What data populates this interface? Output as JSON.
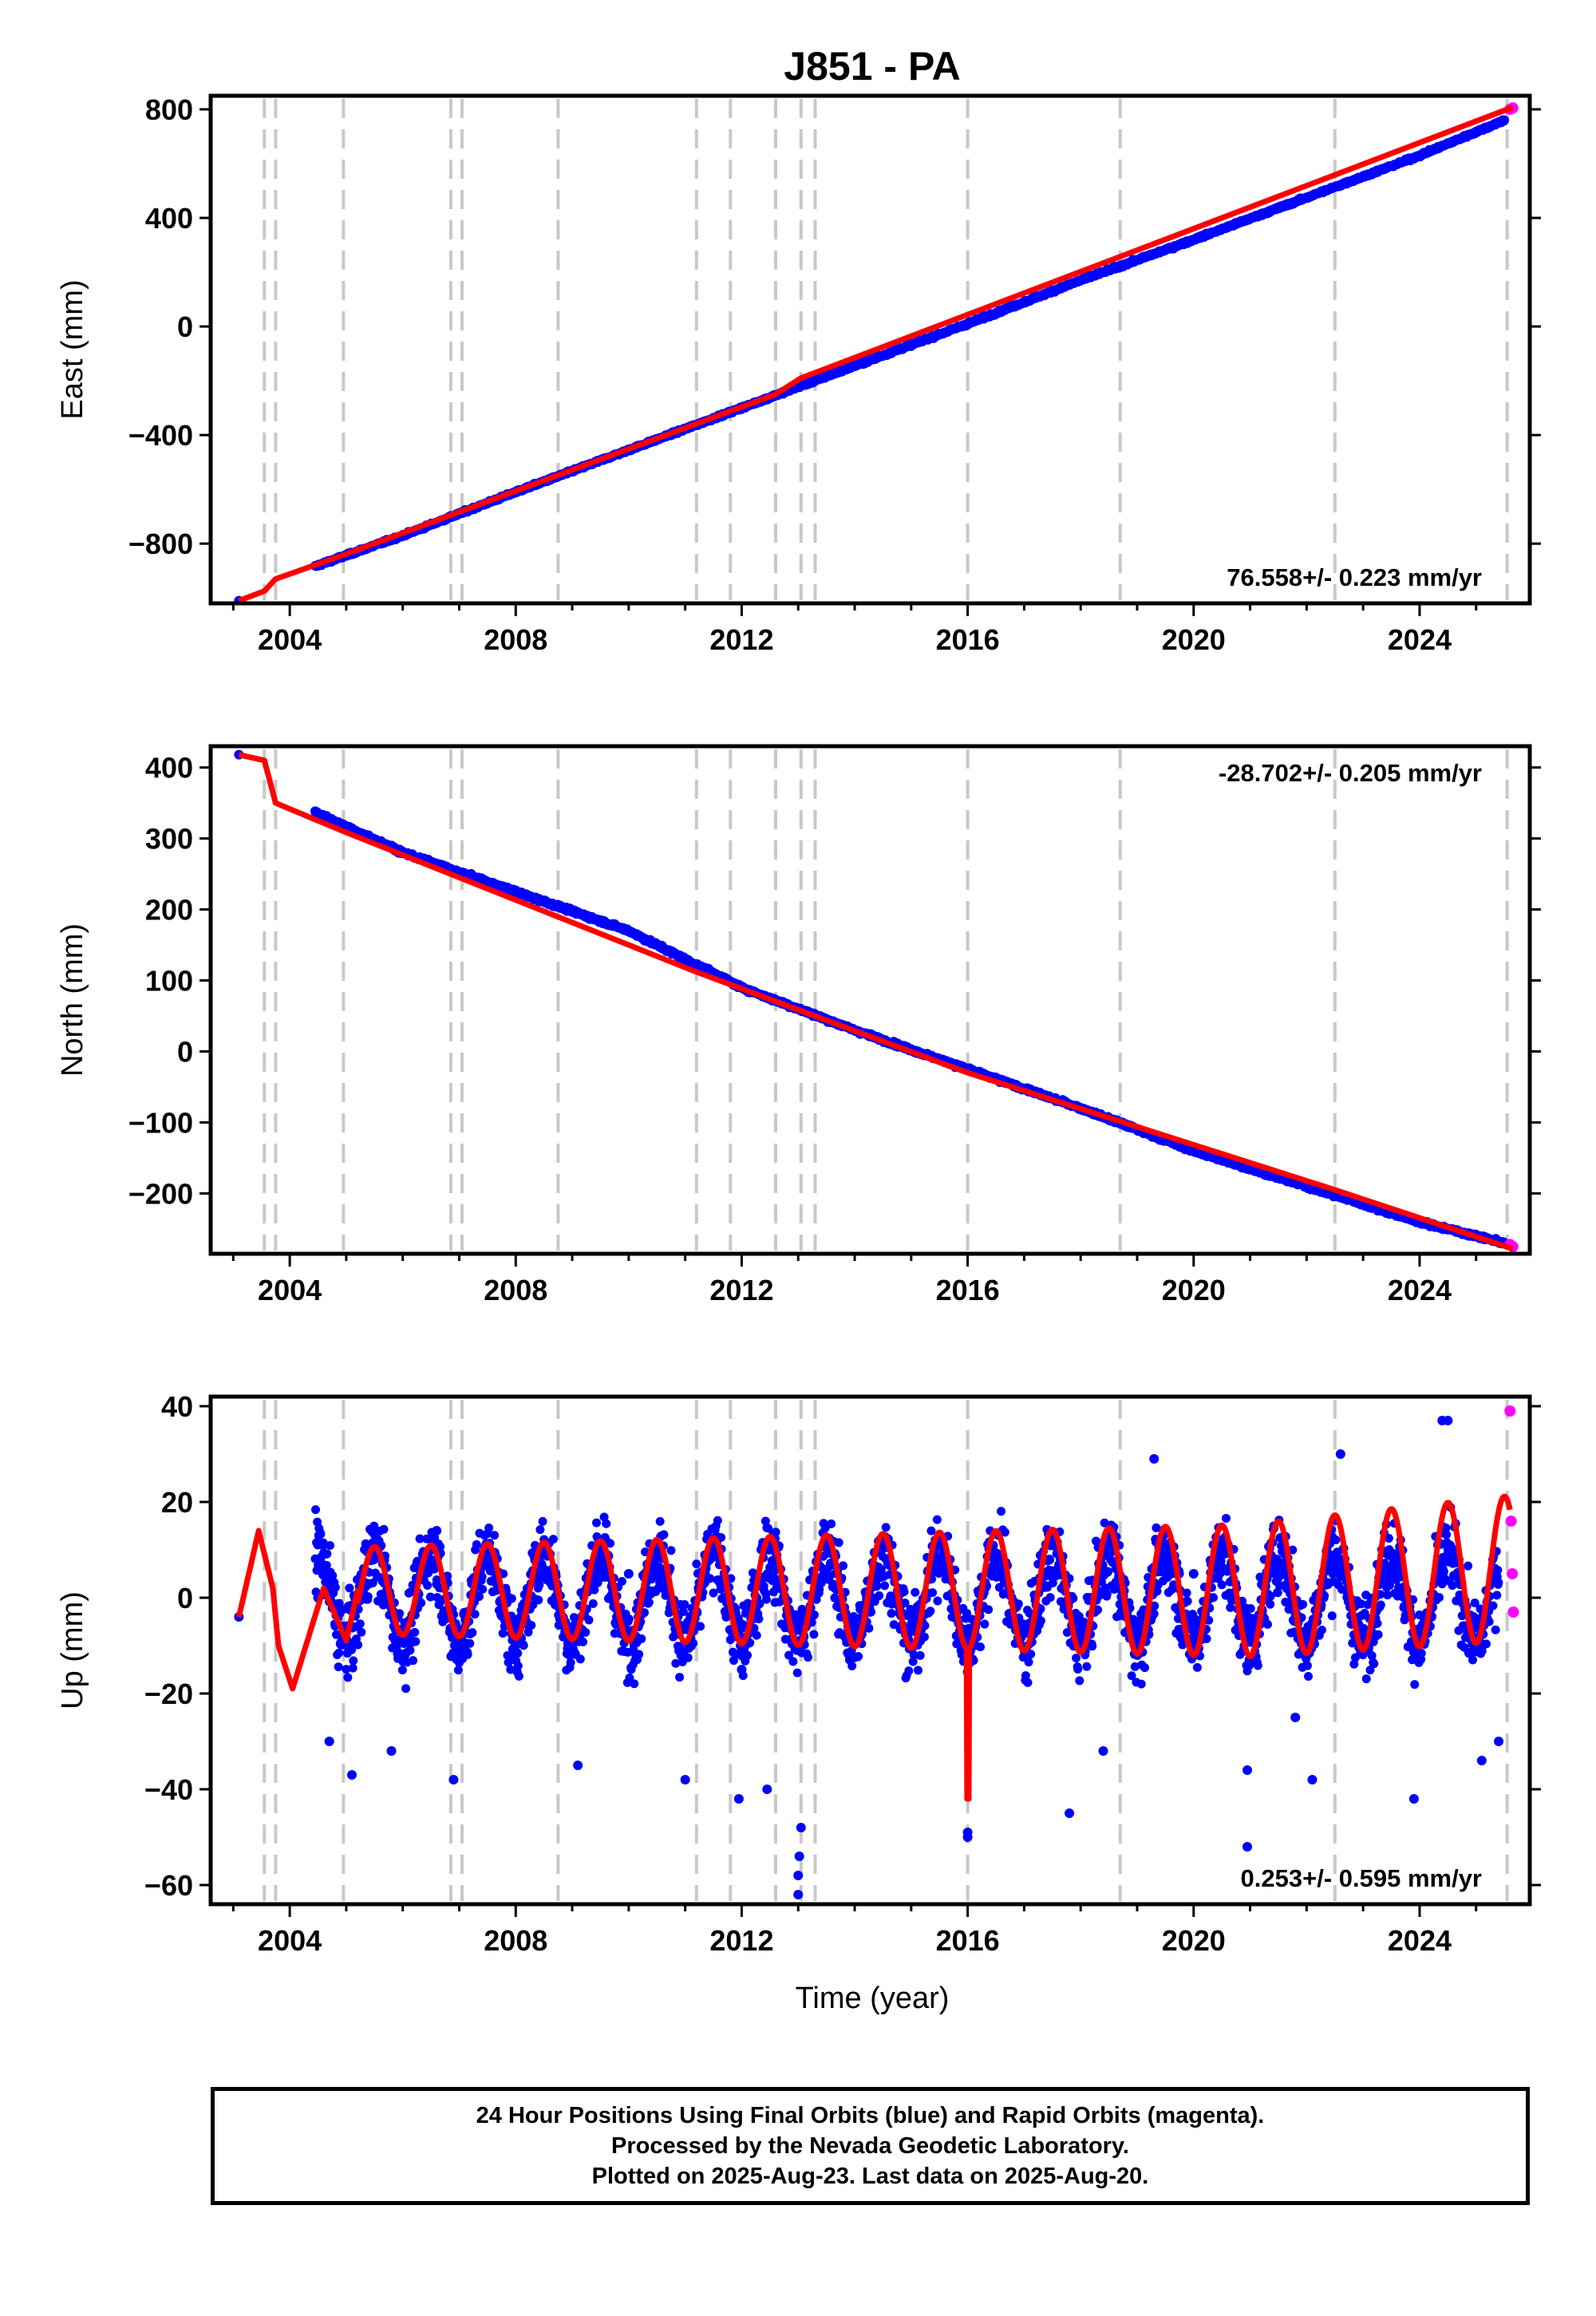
{
  "title": "J851 - PA",
  "xlabel": "Time (year)",
  "colors": {
    "final_orbits": "#0000ff",
    "rapid_orbits": "#ff00ff",
    "model": "#ff0000",
    "offset_lines": "#c8c8c8"
  },
  "x_ticks": [
    2004,
    2008,
    2012,
    2016,
    2020,
    2024
  ],
  "x_range": [
    2002.6,
    2025.95
  ],
  "offset_epochs": [
    2003.55,
    2003.75,
    2004.95,
    2006.85,
    2007.05,
    2008.75,
    2011.2,
    2011.8,
    2012.6,
    2013.05,
    2013.3,
    2016.0,
    2018.7,
    2022.5,
    2025.55
  ],
  "chart_data": [
    {
      "type": "scatter",
      "name": "east",
      "ylabel": "East (mm)",
      "ylim": [
        -1020,
        850
      ],
      "y_ticks": [
        800,
        400,
        0,
        -400,
        -800
      ],
      "y_tick_labels": [
        "800",
        "400",
        "0",
        "−400",
        "−800"
      ],
      "rate_text": "76.558+/- 0.223 mm/yr",
      "rate_position": "bottom-right",
      "grid": false,
      "series": [
        {
          "name": "Final Orbits",
          "x": [
            2003.1,
            2004.5,
            2006.0,
            2008.0,
            2010.0,
            2012.0,
            2014.0,
            2016.0,
            2018.0,
            2020.0,
            2022.0,
            2024.0,
            2025.5
          ],
          "values": [
            -1010,
            -880,
            -770,
            -610,
            -455,
            -300,
            -145,
            10,
            170,
            320,
            475,
            630,
            760
          ]
        },
        {
          "name": "Rapid Orbits",
          "x": [
            2025.6,
            2025.65
          ],
          "values": [
            800,
            805
          ]
        },
        {
          "name": "Model",
          "x": [
            2003.1,
            2003.55,
            2003.75,
            2004.95,
            2012.6,
            2013.05,
            2025.65
          ],
          "values": [
            -1010,
            -975,
            -930,
            -842,
            -250,
            -190,
            808
          ]
        }
      ]
    },
    {
      "type": "scatter",
      "name": "north",
      "ylabel": "North (mm)",
      "ylim": [
        -285,
        430
      ],
      "y_ticks": [
        400,
        300,
        200,
        100,
        0,
        -100,
        -200
      ],
      "y_tick_labels": [
        "400",
        "300",
        "200",
        "100",
        "0",
        "−100",
        "−200"
      ],
      "rate_text": "-28.702+/- 0.205 mm/yr",
      "rate_position": "top-right",
      "grid": false,
      "series": [
        {
          "name": "Final Orbits",
          "x": [
            2003.1,
            2004.5,
            2006.0,
            2008.0,
            2010.0,
            2012.0,
            2014.0,
            2016.0,
            2018.0,
            2020.0,
            2022.0,
            2024.0,
            2025.5
          ],
          "values": [
            418,
            335,
            280,
            225,
            170,
            90,
            30,
            -25,
            -80,
            -140,
            -190,
            -240,
            -270
          ]
        },
        {
          "name": "Rapid Orbits",
          "x": [
            2025.6,
            2025.65
          ],
          "values": [
            -272,
            -275
          ]
        },
        {
          "name": "Model",
          "x": [
            2003.1,
            2003.55,
            2003.75,
            2004.95,
            2011.2,
            2016.0,
            2022.5,
            2025.65
          ],
          "values": [
            418,
            410,
            350,
            310,
            112,
            -30,
            -195,
            -278
          ]
        }
      ]
    },
    {
      "type": "scatter",
      "name": "up",
      "ylabel": "Up (mm)",
      "ylim": [
        -64,
        42
      ],
      "y_ticks": [
        40,
        20,
        0,
        -20,
        -40,
        -60
      ],
      "y_tick_labels": [
        "40",
        "20",
        "0",
        "−20",
        "−40",
        "−60"
      ],
      "rate_text": "0.253+/- 0.595 mm/yr",
      "rate_position": "bottom-right",
      "grid": false,
      "seasonal_amplitude_mm": 9,
      "series": [
        {
          "name": "Final Orbits",
          "x": [
            2003.1,
            2004.5,
            2005.5,
            2006.6,
            2008.0,
            2010.0,
            2012.0,
            2013.0,
            2016.0,
            2020.0,
            2022.6,
            2024.5,
            2025.4
          ],
          "values": [
            -4,
            0,
            10,
            14,
            -5,
            5,
            -15,
            -58,
            -49,
            5,
            30,
            37,
            -30
          ]
        },
        {
          "name": "Rapid Orbits",
          "x": [
            2025.6,
            2025.62,
            2025.64,
            2025.66
          ],
          "values": [
            39,
            16,
            5,
            -3
          ]
        },
        {
          "name": "Model",
          "x": [
            2003.1,
            2003.45,
            2003.7,
            2003.8,
            2004.05,
            2004.6,
            2005.0,
            2005.4,
            2006.55,
            2007.0,
            2016.0,
            2022.55,
            2025.6
          ],
          "values": [
            -4,
            14,
            2,
            -10,
            -19,
            2,
            -9,
            12,
            15,
            -6,
            -42,
            15,
            16
          ]
        }
      ]
    }
  ],
  "footer": {
    "line1": "24 Hour Positions Using Final Orbits (blue) and Rapid Orbits (magenta).",
    "line2": "Processed by the Nevada Geodetic Laboratory.",
    "line3": "Plotted on 2025-Aug-23. Last data on 2025-Aug-20."
  }
}
